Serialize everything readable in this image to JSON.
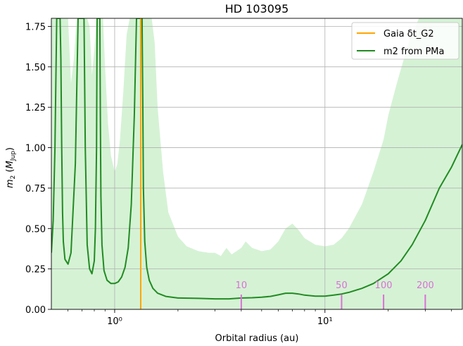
{
  "chart_data": {
    "type": "line",
    "title": "HD 103095",
    "xlabel": "Orbital radius (au)",
    "ylabel": "m2 (MJup)",
    "xscale": "log",
    "xlim": [
      0.5,
      45
    ],
    "ylim": [
      0,
      1.8
    ],
    "grid": true,
    "legend_position": "top-right",
    "colors": {
      "gaia": "#ffa500",
      "pma": "#228b22",
      "band": "#d5f2d5",
      "period": "#da70d6"
    },
    "x_tick_labels": [
      {
        "value": 1,
        "text": "10⁰"
      },
      {
        "value": 10,
        "text": "10¹"
      }
    ],
    "y_tick_labels": [
      "0.00",
      "0.25",
      "0.50",
      "0.75",
      "1.00",
      "1.25",
      "1.50",
      "1.75"
    ],
    "y_ticks": [
      0,
      0.25,
      0.5,
      0.75,
      1.0,
      1.25,
      1.5,
      1.75
    ],
    "legend": [
      {
        "key": "gaia",
        "text": "Gaia δt_G2"
      },
      {
        "key": "pma",
        "text": "m2 from PMa"
      }
    ],
    "gaia_line_x": 1.33,
    "period_markers": [
      {
        "label": "10",
        "x": 4.0
      },
      {
        "label": "50",
        "x": 12.0
      },
      {
        "label": "100",
        "x": 19.0
      },
      {
        "label": "200",
        "x": 30.0
      }
    ],
    "series": [
      {
        "name": "m2 from PMa",
        "x": [
          0.5,
          0.51,
          0.52,
          0.53,
          0.535,
          0.54,
          0.545,
          0.55,
          0.555,
          0.56,
          0.565,
          0.57,
          0.58,
          0.6,
          0.62,
          0.65,
          0.67,
          0.685,
          0.695,
          0.705,
          0.715,
          0.725,
          0.74,
          0.76,
          0.78,
          0.8,
          0.81,
          0.82,
          0.825,
          0.83,
          0.835,
          0.84,
          0.845,
          0.85,
          0.855,
          0.86,
          0.87,
          0.89,
          0.92,
          0.96,
          1.0,
          1.04,
          1.08,
          1.12,
          1.16,
          1.2,
          1.24,
          1.27,
          1.29,
          1.31,
          1.32,
          1.325,
          1.33,
          1.335,
          1.34,
          1.35,
          1.36,
          1.37,
          1.39,
          1.42,
          1.46,
          1.52,
          1.6,
          1.75,
          2.0,
          2.5,
          3.0,
          3.5,
          4.0,
          4.5,
          5.0,
          5.5,
          6.0,
          6.5,
          7.0,
          7.5,
          8.0,
          9.0,
          10.0,
          11.0,
          12.0,
          13.0,
          15.0,
          17.0,
          20.0,
          23.0,
          26.0,
          30.0,
          35.0,
          40.0,
          45.0
        ],
        "y": [
          0.35,
          0.55,
          1.0,
          1.8,
          1.8,
          1.8,
          1.8,
          1.8,
          1.55,
          1.0,
          0.6,
          0.42,
          0.31,
          0.28,
          0.35,
          0.9,
          1.8,
          1.8,
          1.8,
          1.8,
          1.8,
          1.0,
          0.4,
          0.25,
          0.22,
          0.3,
          0.5,
          1.0,
          1.8,
          1.8,
          1.8,
          1.8,
          1.8,
          1.8,
          1.2,
          0.7,
          0.4,
          0.24,
          0.18,
          0.16,
          0.16,
          0.17,
          0.2,
          0.26,
          0.38,
          0.65,
          1.2,
          1.8,
          1.8,
          1.8,
          1.8,
          1.8,
          1.8,
          1.8,
          1.8,
          1.8,
          1.3,
          0.75,
          0.42,
          0.26,
          0.18,
          0.13,
          0.1,
          0.08,
          0.07,
          0.068,
          0.065,
          0.065,
          0.07,
          0.072,
          0.075,
          0.08,
          0.09,
          0.1,
          0.1,
          0.095,
          0.088,
          0.082,
          0.082,
          0.088,
          0.095,
          0.105,
          0.13,
          0.16,
          0.22,
          0.3,
          0.4,
          0.55,
          0.75,
          0.88,
          1.02
        ]
      }
    ],
    "band": {
      "x": [
        0.5,
        0.52,
        0.54,
        0.56,
        0.58,
        0.6,
        0.62,
        0.64,
        0.66,
        0.68,
        0.7,
        0.72,
        0.74,
        0.76,
        0.78,
        0.8,
        0.82,
        0.84,
        0.86,
        0.88,
        0.9,
        0.93,
        0.96,
        1.0,
        1.03,
        1.06,
        1.1,
        1.14,
        1.18,
        1.22,
        1.26,
        1.3,
        1.35,
        1.4,
        1.45,
        1.5,
        1.55,
        1.6,
        1.7,
        1.8,
        2.0,
        2.2,
        2.5,
        2.8,
        3.0,
        3.2,
        3.4,
        3.6,
        3.8,
        4.0,
        4.2,
        4.5,
        5.0,
        5.5,
        6.0,
        6.5,
        7.0,
        7.5,
        8.0,
        9.0,
        10.0,
        11.0,
        12.0,
        13.0,
        15.0,
        17.0,
        19.0,
        20.0,
        22.0,
        25.0,
        28.0,
        31.0,
        35.0,
        40.0,
        45.0
      ],
      "upper": [
        1.8,
        1.8,
        1.8,
        1.8,
        1.8,
        1.8,
        1.4,
        1.55,
        1.8,
        1.8,
        1.8,
        1.8,
        1.8,
        1.75,
        1.45,
        1.6,
        1.8,
        1.8,
        1.8,
        1.8,
        1.5,
        1.15,
        0.95,
        0.85,
        0.9,
        1.05,
        1.35,
        1.7,
        1.8,
        1.8,
        1.8,
        1.8,
        1.8,
        1.8,
        1.8,
        1.8,
        1.65,
        1.25,
        0.85,
        0.6,
        0.45,
        0.39,
        0.36,
        0.35,
        0.35,
        0.33,
        0.38,
        0.34,
        0.36,
        0.38,
        0.42,
        0.38,
        0.36,
        0.37,
        0.42,
        0.5,
        0.53,
        0.49,
        0.44,
        0.4,
        0.39,
        0.4,
        0.44,
        0.5,
        0.65,
        0.85,
        1.05,
        1.2,
        1.4,
        1.65,
        1.8,
        1.8,
        1.8,
        1.8,
        1.8
      ],
      "lower": [
        0.0,
        0.0,
        0.0,
        0.0,
        0.0,
        0.0,
        0.0,
        0.0,
        0.0,
        0.0,
        0.0,
        0.0,
        0.0,
        0.0,
        0.0,
        0.0,
        0.0,
        0.0,
        0.0,
        0.0,
        0.0,
        0.0,
        0.0,
        0.0,
        0.0,
        0.0,
        0.0,
        0.0,
        0.0,
        0.0,
        0.0,
        0.0,
        0.0,
        0.0,
        0.0,
        0.0,
        0.0,
        0.0,
        0.0,
        0.0,
        0.0,
        0.0,
        0.0,
        0.0,
        0.0,
        0.0,
        0.0,
        0.0,
        0.0,
        0.0,
        0.0,
        0.0,
        0.0,
        0.0,
        0.0,
        0.0,
        0.0,
        0.0,
        0.0,
        0.0,
        0.0,
        0.0,
        0.0,
        0.0,
        0.0,
        0.0,
        0.0,
        0.0,
        0.0,
        0.0,
        0.0,
        0.0,
        0.0,
        0.0,
        0.0
      ]
    }
  }
}
